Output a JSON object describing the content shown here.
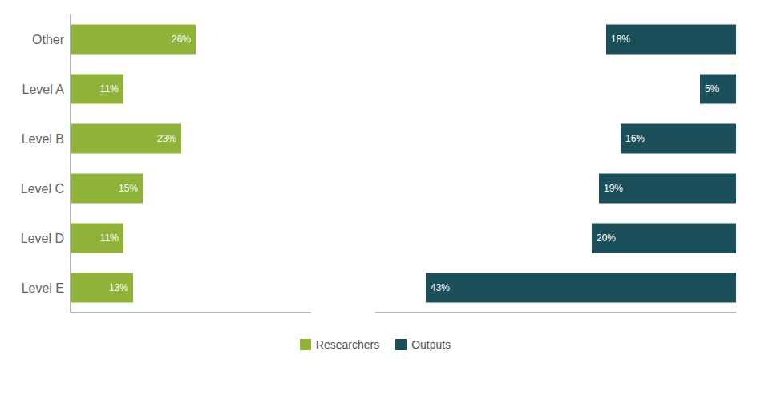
{
  "chart_data": {
    "type": "bar",
    "orientation": "horizontal",
    "categories": [
      "Level E",
      "Level D",
      "Level C",
      "Level B",
      "Level A",
      "Other"
    ],
    "series": [
      {
        "name": "Researchers",
        "color": "#8fb339",
        "values": [
          13,
          11,
          15,
          23,
          11,
          26
        ],
        "value_labels": [
          "13%",
          "11%",
          "15%",
          "23%",
          "11%",
          "26%"
        ]
      },
      {
        "name": "Outputs",
        "color": "#1b4f5a",
        "values": [
          43,
          20,
          19,
          16,
          5,
          18
        ],
        "value_labels": [
          "43%",
          "20%",
          "19%",
          "16%",
          "5%",
          "18%"
        ]
      }
    ],
    "xlim": [
      0,
      50
    ],
    "data_labels": true,
    "tick_labels": "y",
    "grid": false,
    "legend": "bottom"
  }
}
